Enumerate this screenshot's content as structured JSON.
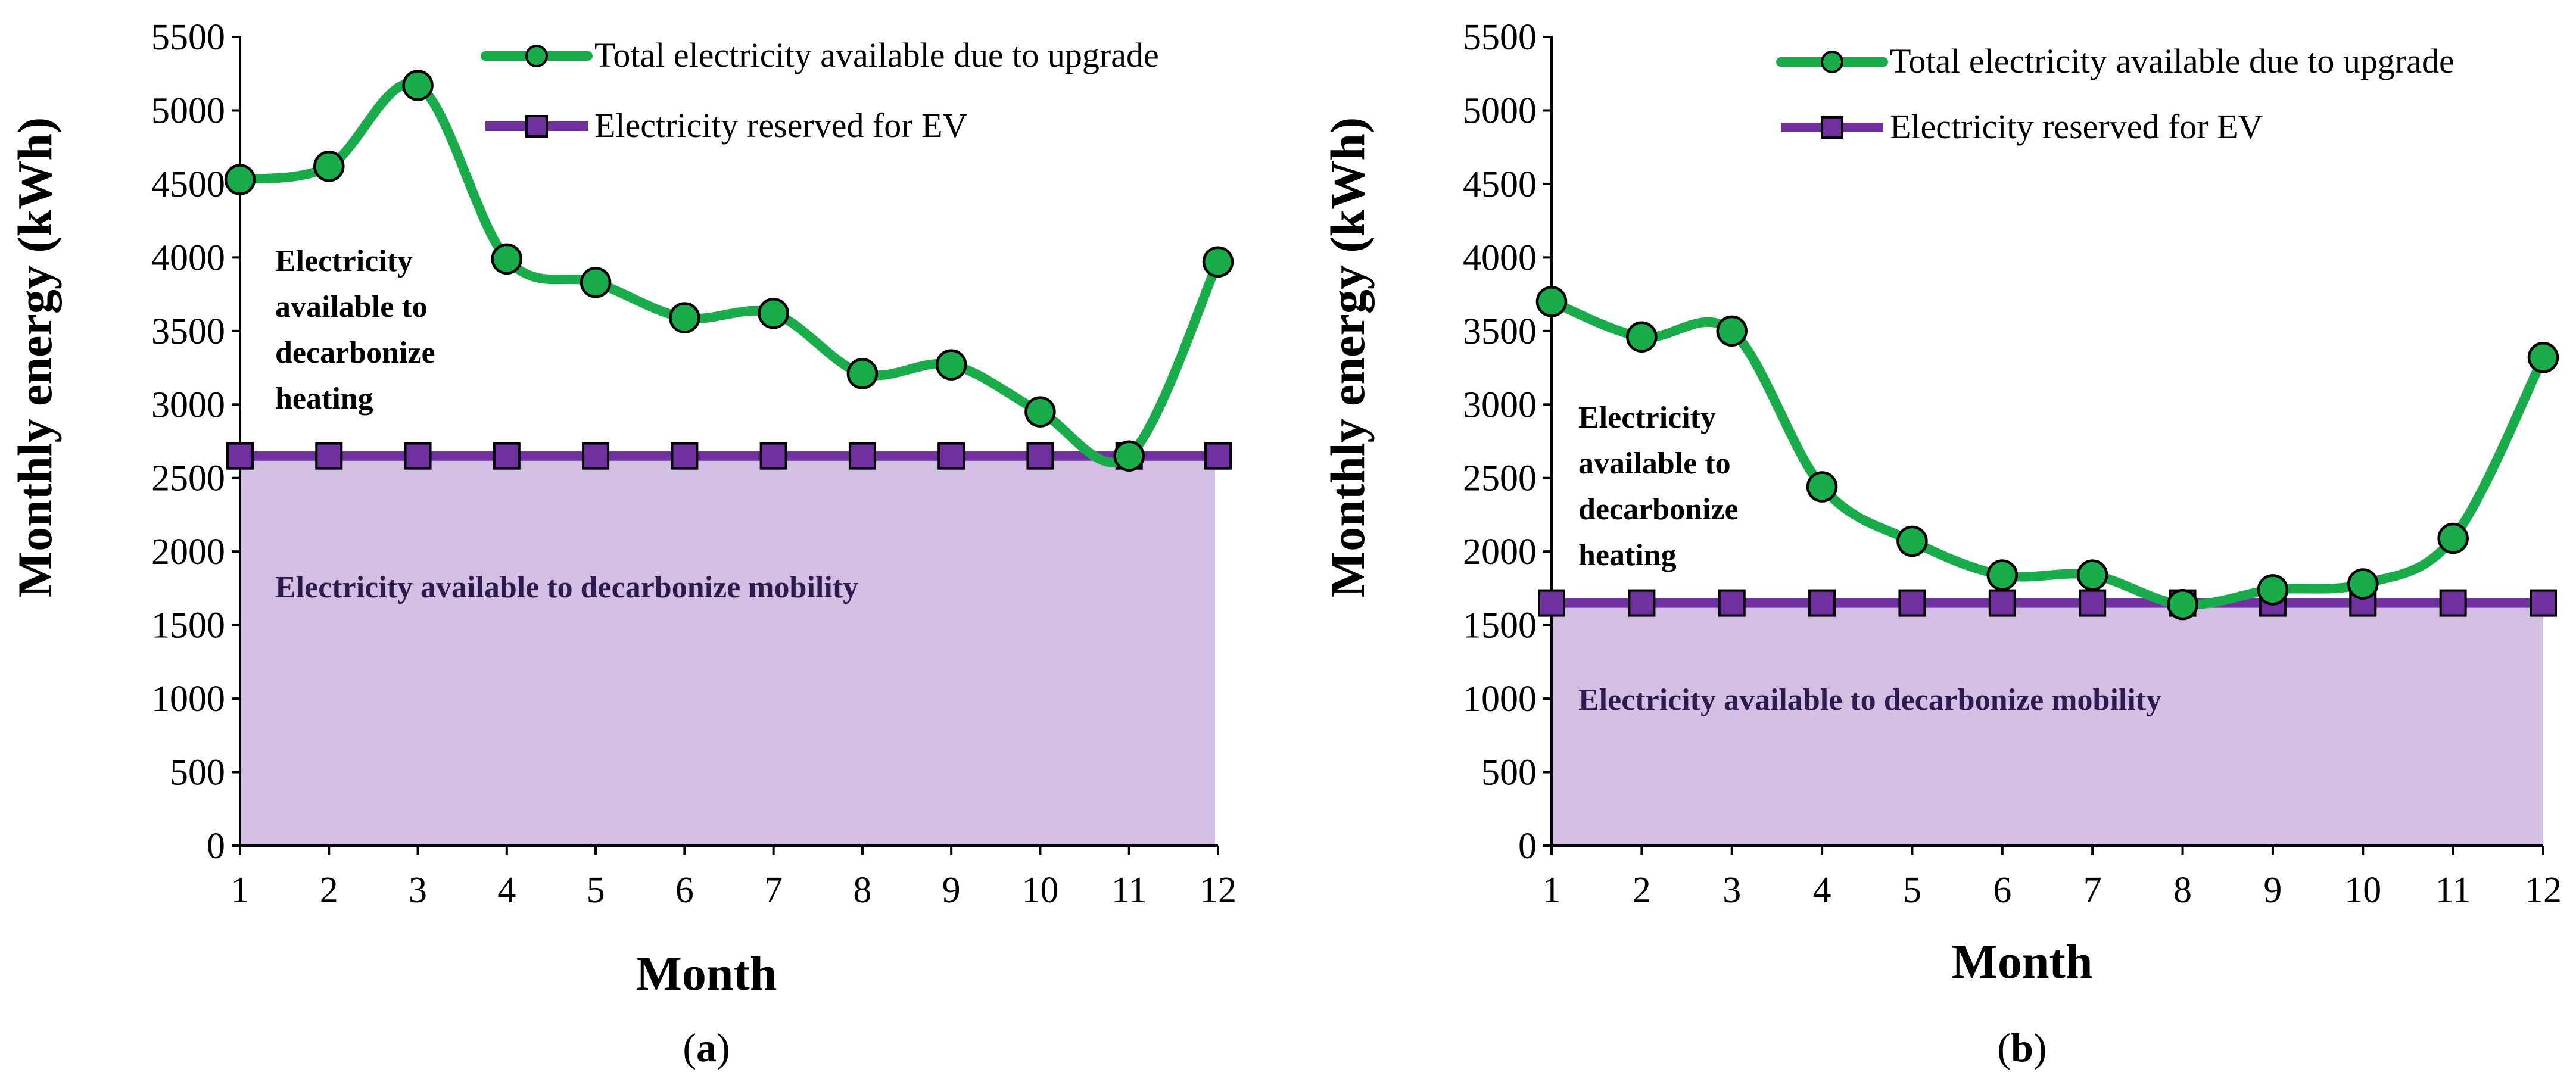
{
  "chart_data": [
    {
      "type": "line",
      "panel": "a",
      "caption": {
        "open": "(",
        "letter": "a",
        "close": ")"
      },
      "xlabel": "Month",
      "ylabel": "Monthly energy (kWh)",
      "x": [
        1,
        2,
        3,
        4,
        5,
        6,
        7,
        8,
        9,
        10,
        11,
        12
      ],
      "xlim": [
        1,
        12
      ],
      "ylim": [
        0,
        5500
      ],
      "yticks": [
        0,
        500,
        1000,
        1500,
        2000,
        2500,
        3000,
        3500,
        4000,
        4500,
        5000,
        5500
      ],
      "legend_position": "top-right",
      "series": [
        {
          "name": "Total electricity available due to upgrade",
          "marker": "circle",
          "color": "#1aab4b",
          "values": [
            4530,
            4620,
            5170,
            3990,
            3830,
            3590,
            3620,
            3210,
            3270,
            2950,
            2650,
            3970
          ]
        },
        {
          "name": "Electricity reserved for EV",
          "marker": "square",
          "color": "#7030a0",
          "values": [
            2650,
            2650,
            2650,
            2650,
            2650,
            2650,
            2650,
            2650,
            2650,
            2650,
            2650,
            2650
          ]
        }
      ],
      "annotations": {
        "heating": [
          "Electricity",
          "available to",
          "decarbonize",
          "heating"
        ],
        "mobility": "Electricity available to decarbonize mobility"
      }
    },
    {
      "type": "line",
      "panel": "b",
      "caption": {
        "open": "(",
        "letter": "b",
        "close": ")"
      },
      "xlabel": "Month",
      "ylabel": "Monthly energy (kWh)",
      "x": [
        1,
        2,
        3,
        4,
        5,
        6,
        7,
        8,
        9,
        10,
        11,
        12
      ],
      "xlim": [
        1,
        12
      ],
      "ylim": [
        0,
        5500
      ],
      "yticks": [
        0,
        500,
        1000,
        1500,
        2000,
        2500,
        3000,
        3500,
        4000,
        4500,
        5000,
        5500
      ],
      "legend_position": "top-right",
      "series": [
        {
          "name": "Total electricity available due to upgrade",
          "marker": "circle",
          "color": "#1aab4b",
          "values": [
            3700,
            3460,
            3500,
            2440,
            2070,
            1840,
            1840,
            1640,
            1740,
            1780,
            2090,
            3320
          ]
        },
        {
          "name": "Electricity reserved for EV",
          "marker": "square",
          "color": "#7030a0",
          "values": [
            1650,
            1650,
            1650,
            1650,
            1650,
            1650,
            1650,
            1650,
            1650,
            1650,
            1650,
            1650
          ]
        }
      ],
      "annotations": {
        "heating": [
          "Electricity",
          "available to",
          "decarbonize",
          "heating"
        ],
        "mobility": "Electricity available to decarbonize mobility"
      }
    }
  ],
  "colors": {
    "fill": "#d3bfe3",
    "total_line": "#1aab4b",
    "ev_line": "#7030a0",
    "ev_marker_fill": "#7030a0"
  }
}
